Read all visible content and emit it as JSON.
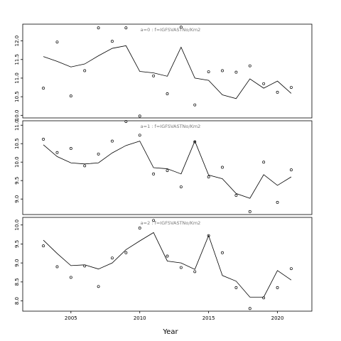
{
  "chart_data": {
    "type": "scatter",
    "xlabel": "Year",
    "xlim": [
      2001.5,
      2022.5
    ],
    "xticks": [
      2005,
      2010,
      2015,
      2020
    ],
    "x": [
      2003,
      2004,
      2005,
      2006,
      2007,
      2008,
      2009,
      2010,
      2011,
      2012,
      2013,
      2014,
      2015,
      2016,
      2017,
      2018,
      2019,
      2020,
      2021
    ],
    "panels": [
      {
        "label": "a=0  :  f=IGFSVASTNo/Km2",
        "ylim": [
          9.93,
          12.45
        ],
        "yticks": [
          10.0,
          10.5,
          11.0,
          11.5,
          12.0
        ],
        "observed": [
          10.73,
          11.97,
          10.52,
          11.2,
          12.35,
          11.99,
          12.35,
          9.98,
          11.06,
          10.58,
          12.37,
          10.28,
          11.17,
          11.2,
          11.16,
          11.33,
          10.85,
          10.62,
          10.75
        ],
        "fitted": [
          11.58,
          11.45,
          11.3,
          11.38,
          11.6,
          11.8,
          11.87,
          11.18,
          11.14,
          11.05,
          11.83,
          11.0,
          10.94,
          10.55,
          10.45,
          10.98,
          10.73,
          10.92,
          10.59
        ]
      },
      {
        "label": "a=1  :  f=IGFSVASTNo/Km2",
        "ylim": [
          8.58,
          11.12
        ],
        "yticks": [
          9.0,
          9.5,
          10.0,
          10.5,
          11.0
        ],
        "observed": [
          10.62,
          10.26,
          10.37,
          9.9,
          10.22,
          10.57,
          11.1,
          10.73,
          9.68,
          9.77,
          9.33,
          10.55,
          9.6,
          9.86,
          9.1,
          8.66,
          10.0,
          8.91,
          9.79
        ],
        "fitted": [
          10.47,
          10.15,
          9.98,
          9.95,
          9.98,
          10.25,
          10.45,
          10.57,
          9.85,
          9.82,
          9.68,
          10.57,
          9.65,
          9.55,
          9.15,
          9.02,
          9.66,
          9.37,
          9.6
        ]
      },
      {
        "label": "a=2  :  f=IGFSVASTNo/Km2",
        "ylim": [
          7.73,
          10.2
        ],
        "yticks": [
          8.0,
          8.5,
          9.0,
          9.5,
          10.0
        ],
        "observed": [
          9.45,
          8.9,
          8.62,
          8.92,
          8.38,
          9.13,
          9.27,
          9.92,
          10.12,
          9.18,
          8.88,
          8.77,
          9.72,
          9.27,
          8.35,
          7.8,
          8.08,
          8.35,
          8.85
        ],
        "fitted": [
          9.6,
          9.25,
          8.93,
          8.95,
          8.84,
          9.0,
          9.35,
          9.58,
          9.8,
          9.05,
          9.0,
          8.83,
          9.72,
          8.67,
          8.52,
          8.1,
          8.1,
          8.8,
          8.55
        ]
      }
    ]
  }
}
